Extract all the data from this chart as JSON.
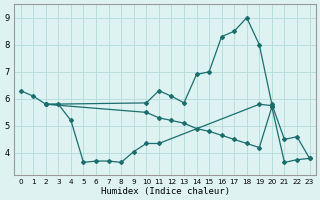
{
  "xlabel": "Humidex (Indice chaleur)",
  "background_color": "#dff2f2",
  "grid_color": "#b8dede",
  "line_color": "#1a6e6e",
  "xlim": [
    -0.5,
    23.5
  ],
  "ylim": [
    3.2,
    9.5
  ],
  "yticks": [
    4,
    5,
    6,
    7,
    8,
    9
  ],
  "xticks": [
    0,
    1,
    2,
    3,
    4,
    5,
    6,
    7,
    8,
    9,
    10,
    11,
    12,
    13,
    14,
    15,
    16,
    17,
    18,
    19,
    20,
    21,
    22,
    23
  ],
  "line1_x": [
    0,
    1,
    2,
    10,
    11,
    12,
    13,
    14,
    15,
    16,
    17,
    18,
    19,
    20,
    21,
    22,
    23
  ],
  "line1_y": [
    6.3,
    6.1,
    5.8,
    5.85,
    6.3,
    6.1,
    5.85,
    6.9,
    7.0,
    8.3,
    8.5,
    9.0,
    8.0,
    5.8,
    4.5,
    4.6,
    3.8
  ],
  "line2_x": [
    2,
    3,
    4,
    5,
    6,
    7,
    8,
    9,
    10,
    11,
    19,
    20
  ],
  "line2_y": [
    5.8,
    5.8,
    5.2,
    3.65,
    3.7,
    3.7,
    3.65,
    4.05,
    4.35,
    4.35,
    5.8,
    5.75
  ],
  "line3_x": [
    2,
    10,
    11,
    12,
    13,
    14,
    15,
    16,
    17,
    18,
    19,
    20,
    21,
    22,
    23
  ],
  "line3_y": [
    5.8,
    5.5,
    5.3,
    5.2,
    5.1,
    4.9,
    4.8,
    4.65,
    4.5,
    4.35,
    4.2,
    5.7,
    3.65,
    3.75,
    3.8
  ]
}
